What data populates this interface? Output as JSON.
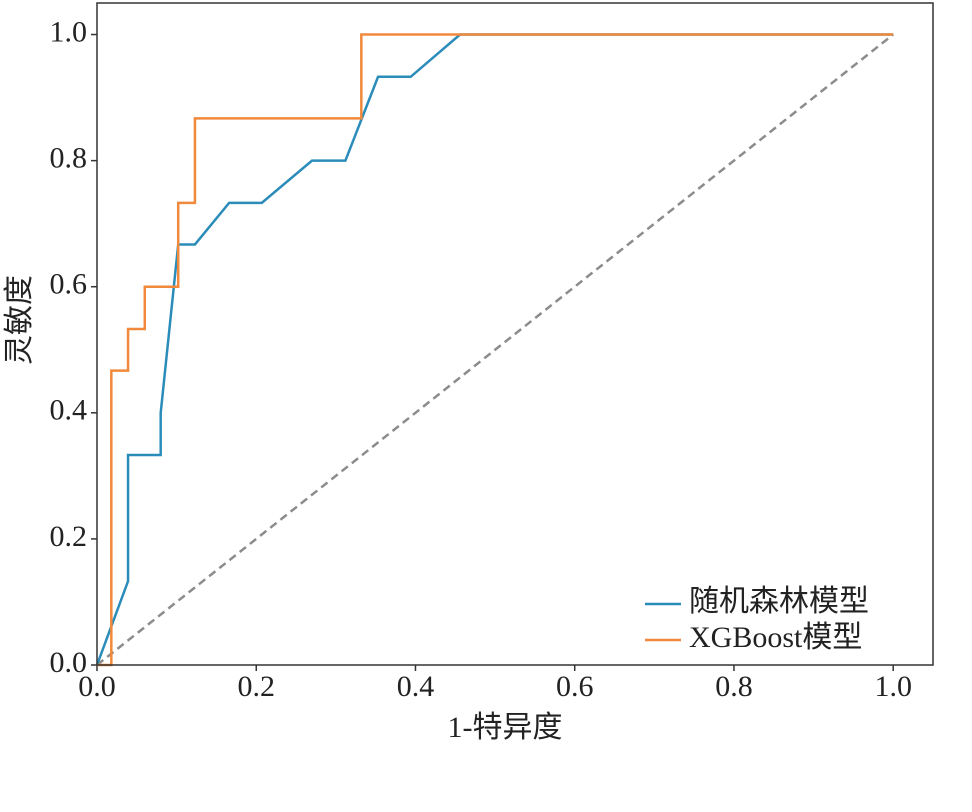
{
  "chart_data": {
    "type": "line",
    "xlabel": "1-特异度",
    "ylabel": "灵敏度",
    "xlim": [
      0,
      1.05
    ],
    "ylim": [
      0,
      1.05
    ],
    "xticks": [
      {
        "value": 0,
        "label": "0.0"
      },
      0.2,
      0.4,
      0.6,
      0.8,
      {
        "value": 1,
        "label": "1.0"
      }
    ],
    "yticks": [
      {
        "value": 0,
        "label": "0.0"
      },
      0.2,
      0.4,
      0.6,
      0.8,
      {
        "value": 1,
        "label": "1.0"
      }
    ],
    "legend": "lower right",
    "series": [
      {
        "name": "随机森林模型",
        "color": "#2b8cba",
        "x": [
          0,
          0.039,
          0.039,
          0.08,
          0.08,
          0.102,
          0.123,
          0.166,
          0.207,
          0.27,
          0.312,
          0.353,
          0.394,
          0.456,
          1
        ],
        "values": [
          0,
          0.133,
          0.333,
          0.333,
          0.4,
          0.667,
          0.667,
          0.733,
          0.733,
          0.8,
          0.8,
          0.933,
          0.933,
          1,
          1
        ]
      },
      {
        "name": "XGBoost模型",
        "color": "#f0893b",
        "x": [
          0,
          0.018,
          0.018,
          0.039,
          0.039,
          0.06,
          0.06,
          0.102,
          0.102,
          0.123,
          0.123,
          0.332,
          0.332,
          1
        ],
        "values": [
          0,
          0,
          0.467,
          0.467,
          0.533,
          0.533,
          0.6,
          0.6,
          0.733,
          0.733,
          0.867,
          0.867,
          1,
          1
        ]
      }
    ],
    "reference_line": {
      "x": [
        0,
        1
      ],
      "values": [
        0,
        1
      ],
      "color": "#8c8c8c"
    }
  }
}
